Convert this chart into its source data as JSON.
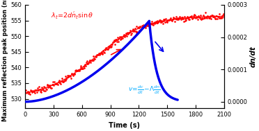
{
  "xlabel": "Time (s)",
  "ylabel_left": "Maximum reflection peak position (nm)",
  "ylabel_right": "dn/dt",
  "xlim": [
    0,
    2100
  ],
  "ylim_left": [
    527,
    560
  ],
  "ylim_right": [
    -2e-05,
    0.0003
  ],
  "xticks": [
    0,
    300,
    600,
    900,
    1200,
    1500,
    1800,
    2100
  ],
  "yticks_left": [
    530,
    535,
    540,
    545,
    550,
    555,
    560
  ],
  "yticks_right": [
    0.0,
    0.0001,
    0.0002,
    0.0003
  ],
  "blue_color": "#0000EE",
  "red_color": "#FF0000",
  "cyan_color": "#00AAFF",
  "background_color": "#FFFFFF",
  "red_peak_y": 556.5,
  "red_start_y": 530.5,
  "blue_peak": 0.00025,
  "blue_peak_t": 1310,
  "blue_end_t": 1610
}
